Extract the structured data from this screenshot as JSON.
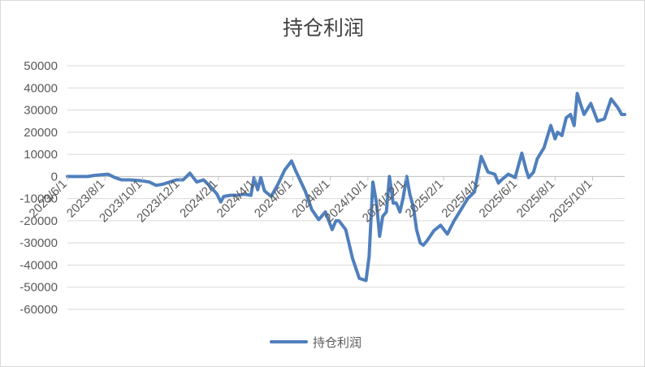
{
  "chart_data": {
    "type": "line",
    "title": "持仓利润",
    "xlabel": "",
    "ylabel": "",
    "ylim": [
      -60000,
      50000
    ],
    "y_ticks": [
      50000,
      40000,
      30000,
      20000,
      10000,
      0,
      -10000,
      -20000,
      -30000,
      -40000,
      -50000,
      -60000
    ],
    "y_tick_labels": [
      "50000",
      "40000",
      "30000",
      "20000",
      "10000",
      "0",
      "-10000",
      "-20000",
      "-30000",
      "-40000",
      "-50000",
      "-60000"
    ],
    "x_tick_labels": [
      "2023/6/1",
      "2023/8/1",
      "2023/10/1",
      "2023/12/1",
      "2024/2/1",
      "2024/4/1",
      "2024/6/1",
      "2024/8/1",
      "2024/10/1",
      "2024/12/1",
      "2025/2/1",
      "2025/4/1",
      "2025/6/1",
      "2025/8/1",
      "2025/10/1"
    ],
    "x_tick_dates": [
      "2023-06-01",
      "2023-08-01",
      "2023-10-01",
      "2023-12-01",
      "2024-02-01",
      "2024-04-01",
      "2024-06-01",
      "2024-08-01",
      "2024-10-01",
      "2024-12-01",
      "2025-02-01",
      "2025-04-01",
      "2025-06-01",
      "2025-08-01",
      "2025-10-01"
    ],
    "x_range": [
      "2023-06-01",
      "2025-11-22"
    ],
    "grid": true,
    "legend": "bottom",
    "series": [
      {
        "name": "持仓利润",
        "color": "#4f7fbd",
        "x": [
          "2023-06-01",
          "2023-06-12",
          "2023-06-23",
          "2023-07-04",
          "2023-07-15",
          "2023-07-26",
          "2023-08-06",
          "2023-08-17",
          "2023-08-28",
          "2023-09-09",
          "2023-09-20",
          "2023-10-01",
          "2023-10-12",
          "2023-10-23",
          "2023-11-03",
          "2023-11-14",
          "2023-11-25",
          "2023-12-06",
          "2023-12-17",
          "2023-12-28",
          "2024-01-08",
          "2024-01-19",
          "2024-01-30",
          "2024-02-05",
          "2024-02-10",
          "2024-02-21",
          "2024-03-03",
          "2024-03-14",
          "2024-03-25",
          "2024-03-30",
          "2024-04-05",
          "2024-04-10",
          "2024-04-16",
          "2024-04-27",
          "2024-05-08",
          "2024-05-19",
          "2024-05-30",
          "2024-06-05",
          "2024-06-10",
          "2024-06-21",
          "2024-07-02",
          "2024-07-13",
          "2024-07-24",
          "2024-08-04",
          "2024-08-10",
          "2024-08-15",
          "2024-08-26",
          "2024-09-06",
          "2024-09-17",
          "2024-09-28",
          "2024-10-03",
          "2024-10-09",
          "2024-10-15",
          "2024-10-20",
          "2024-10-25",
          "2024-10-31",
          "2024-11-05",
          "2024-11-11",
          "2024-11-16",
          "2024-11-22",
          "2024-11-27",
          "2024-12-03",
          "2024-12-08",
          "2024-12-14",
          "2024-12-19",
          "2024-12-25",
          "2024-12-30",
          "2025-01-05",
          "2025-01-16",
          "2025-01-27",
          "2025-02-07",
          "2025-02-18",
          "2025-03-01",
          "2025-03-12",
          "2025-03-23",
          "2025-04-03",
          "2025-04-14",
          "2025-04-25",
          "2025-05-01",
          "2025-05-06",
          "2025-05-17",
          "2025-05-28",
          "2025-06-08",
          "2025-06-15",
          "2025-06-19",
          "2025-06-27",
          "2025-07-03",
          "2025-07-14",
          "2025-07-25",
          "2025-08-01",
          "2025-08-05",
          "2025-08-12",
          "2025-08-19",
          "2025-08-26",
          "2025-09-01",
          "2025-09-06",
          "2025-09-11",
          "2025-09-17",
          "2025-09-28",
          "2025-10-09",
          "2025-10-20",
          "2025-10-31",
          "2025-11-11",
          "2025-11-17",
          "2025-11-22"
        ],
        "y": [
          0,
          0,
          0,
          0,
          500,
          800,
          1000,
          -500,
          -1500,
          -1500,
          -1700,
          -2000,
          -2500,
          -4000,
          -3500,
          -2500,
          -1500,
          -1500,
          1500,
          -2500,
          -1500,
          -4500,
          -8000,
          -11500,
          -9000,
          -8500,
          -8500,
          -8000,
          -8500,
          -500,
          -6000,
          -500,
          -6500,
          -9000,
          -3500,
          3000,
          7000,
          3000,
          0,
          -6500,
          -15000,
          -19500,
          -16000,
          -24000,
          -20000,
          -20000,
          -24000,
          -37000,
          -46000,
          -47000,
          -36000,
          -2500,
          -12000,
          -27000,
          -18000,
          -16000,
          0,
          -12000,
          -12000,
          -16000,
          -10000,
          0,
          -8000,
          -14000,
          -24000,
          -30000,
          -31000,
          -29000,
          -24500,
          -22000,
          -26000,
          -20000,
          -15000,
          -10000,
          -7000,
          9000,
          2000,
          1000,
          -3000,
          -1500,
          1000,
          -500,
          10500,
          3000,
          -500,
          2000,
          8000,
          13000,
          23000,
          17000,
          20000,
          18500,
          26500,
          28000,
          23000,
          37500,
          33000,
          28000,
          33000,
          25000,
          26000,
          35000,
          31000,
          28000,
          28000
        ]
      }
    ]
  }
}
